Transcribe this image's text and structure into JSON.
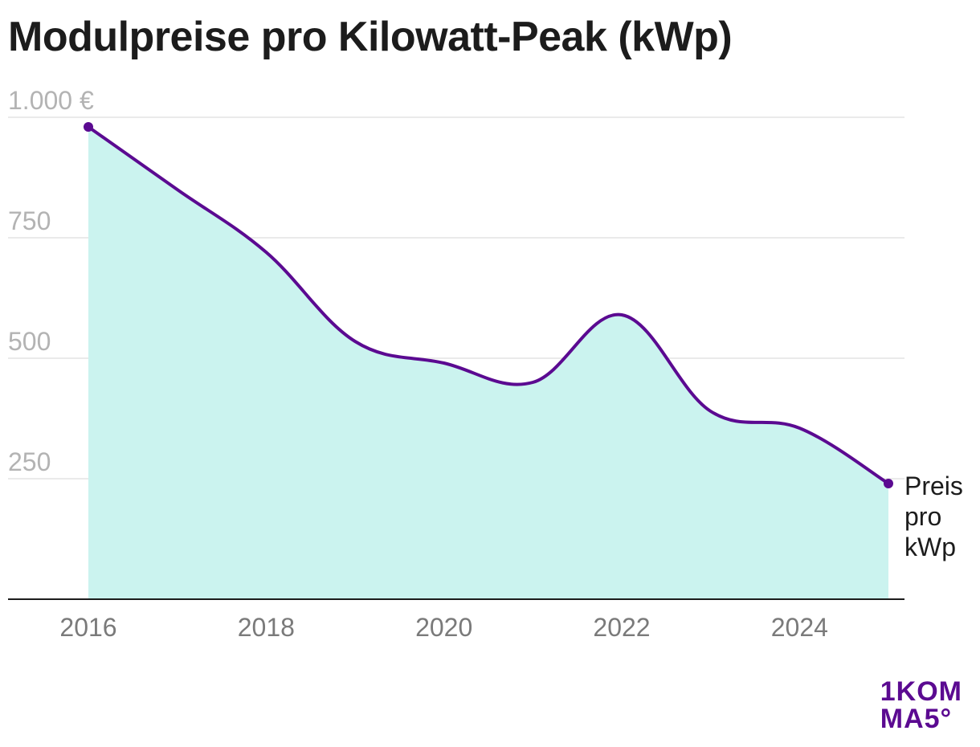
{
  "title": "Modulpreise pro Kilowatt-Peak (kWp)",
  "colors": {
    "line": "#5b0a91",
    "area": "#cbf3ef",
    "grid": "#e3e3e3",
    "axis": "#1c1c1c",
    "logo": "#5b0a91"
  },
  "logo": {
    "line1": "1KOM",
    "line2": "MA5°",
    "icon": "1komma5-logo"
  },
  "chart_data": {
    "type": "area",
    "title": "Modulpreise pro Kilowatt-Peak (kWp)",
    "x": [
      2016,
      2017,
      2018,
      2019,
      2020,
      2021,
      2022,
      2023,
      2024,
      2025
    ],
    "series": [
      {
        "name": "Preis pro kWp",
        "values": [
          980,
          850,
          720,
          535,
          490,
          450,
          590,
          390,
          355,
          240
        ]
      }
    ],
    "end_label": [
      "Preis",
      "pro",
      "kWp"
    ],
    "xticks": [
      2016,
      2018,
      2020,
      2022,
      2024
    ],
    "xtick_labels": [
      "2016",
      "2018",
      "2020",
      "2022",
      "2024"
    ],
    "yticks": [
      250,
      500,
      750,
      1000
    ],
    "ytick_labels": [
      "250",
      "500",
      "750",
      "1.000 €"
    ],
    "xlim": [
      2016,
      2025
    ],
    "ylim": [
      0,
      1000
    ],
    "grid": true,
    "xlabel": "",
    "ylabel": ""
  }
}
